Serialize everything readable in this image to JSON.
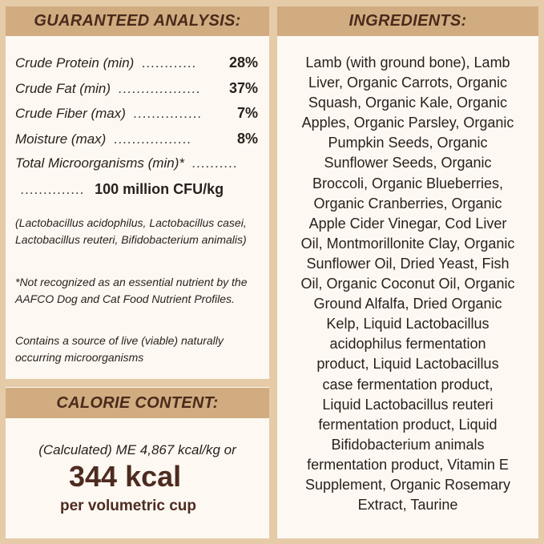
{
  "guaranteed_analysis": {
    "title": "GUARANTEED ANALYSIS:",
    "rows": [
      {
        "label": "Crude Protein (min)",
        "dots": "............",
        "value": "28%"
      },
      {
        "label": "Crude Fat (min)",
        "dots": "..................",
        "value": "37%"
      },
      {
        "label": "Crude Fiber (max)",
        "dots": "...............",
        "value": "7%"
      },
      {
        "label": "Moisture (max)",
        "dots": ".................",
        "value": "8%"
      }
    ],
    "microorganisms_label": "Total Microorganisms (min)*",
    "microorganisms_dots": "..........",
    "microorganisms_dots2": "..............",
    "microorganisms_value": "100 million CFU/kg",
    "strains": "(Lactobacillus acidophilus, Lactobacillus casei, Lactobacillus reuteri, Bifidobacterium animalis)",
    "footnote": "*Not recognized as an essential nutrient by the AAFCO Dog and Cat Food Nutrient Profiles.",
    "live_note": "Contains a source of live (viable) naturally occurring microorganisms"
  },
  "calorie_content": {
    "title": "CALORIE CONTENT:",
    "calculated": "(Calculated) ME 4,867 kcal/kg or",
    "kcal": "344 kcal",
    "per_cup": "per volumetric cup"
  },
  "ingredients": {
    "title": "INGREDIENTS:",
    "lines": [
      "Lamb (with ground bone), Lamb",
      "Liver, Organic Carrots, Organic",
      "Squash, Organic Kale, Organic",
      "Apples, Organic Parsley, Organic",
      "Pumpkin Seeds, Organic",
      "Sunflower Seeds, Organic",
      "Broccoli, Organic Blueberries,",
      "Organic Cranberries, Organic",
      "Apple Cider Vinegar, Cod Liver",
      "Oil, Montmorillonite Clay, Organic",
      "Sunflower Oil, Dried Yeast, Fish",
      "Oil, Organic Coconut Oil, Organic",
      "Ground Alfalfa, Dried Organic",
      "Kelp, Liquid Lactobacillus",
      "acidophilus fermentation",
      "product, Liquid Lactobacillus",
      "case fermentation product,",
      "Liquid Lactobacillus reuteri",
      "fermentation product, Liquid",
      "Bifidobacterium animals",
      "fermentation product, Vitamin E",
      "Supplement, Organic Rosemary",
      "Extract, Taurine"
    ]
  },
  "colors": {
    "background": "#e6cba8",
    "header": "#d1ac80",
    "panel": "#fdf9f2",
    "title_text": "#4a2a1c"
  }
}
